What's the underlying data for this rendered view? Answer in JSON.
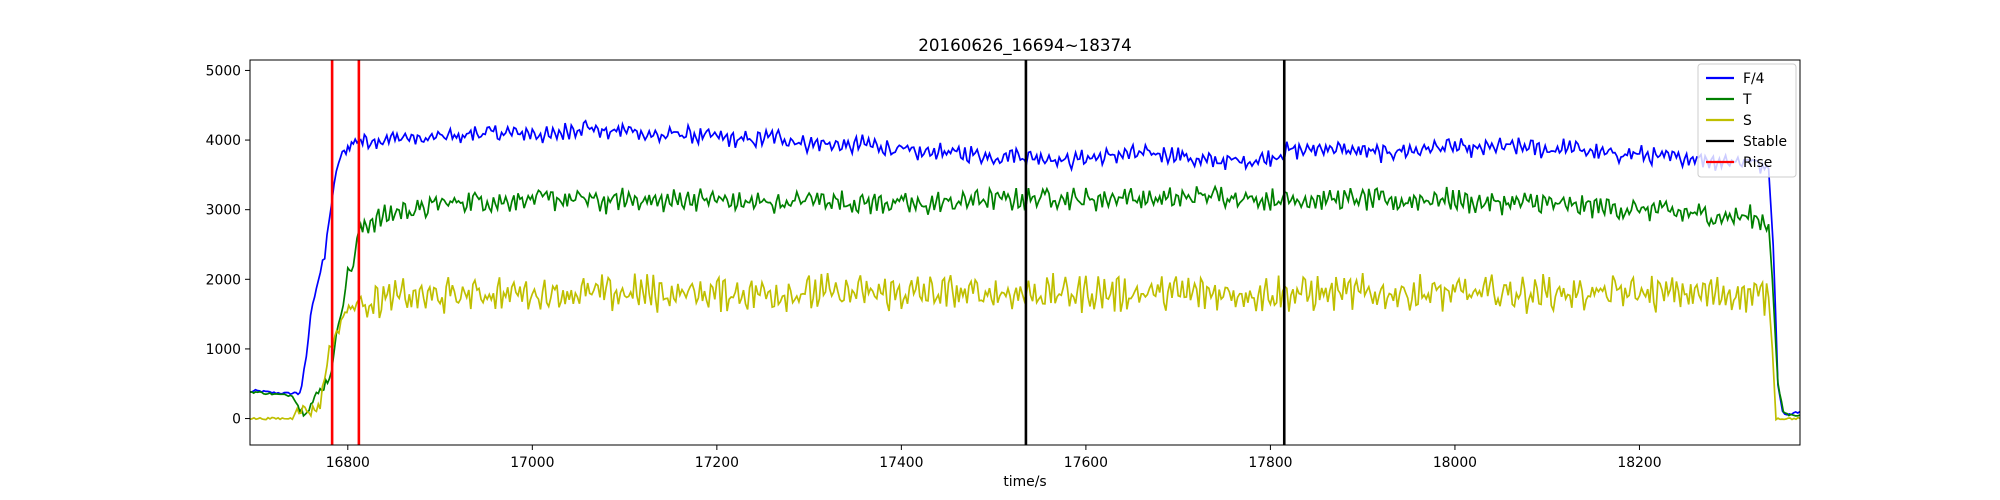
{
  "chart_data": {
    "type": "line",
    "title": "20160626_16694~18374",
    "xlabel": "time/s",
    "ylabel": "",
    "xlim": [
      16694,
      18374
    ],
    "ylim": [
      -380,
      5150
    ],
    "xticks": [
      16800,
      17000,
      17200,
      17400,
      17600,
      17800,
      18000,
      18200
    ],
    "yticks": [
      0,
      1000,
      2000,
      3000,
      4000,
      5000
    ],
    "grid": false,
    "legend_position": "top-right",
    "series": [
      {
        "name": "F/4",
        "color": "#0000ff",
        "points": [
          [
            16694,
            380
          ],
          [
            16700,
            400
          ],
          [
            16720,
            370
          ],
          [
            16740,
            360
          ],
          [
            16750,
            400
          ],
          [
            16755,
            900
          ],
          [
            16762,
            1700
          ],
          [
            16768,
            2000
          ],
          [
            16775,
            2300
          ],
          [
            16780,
            2900
          ],
          [
            16785,
            3300
          ],
          [
            16790,
            3700
          ],
          [
            16800,
            3900
          ],
          [
            16810,
            4000
          ],
          [
            16820,
            4000
          ],
          [
            16840,
            4000
          ],
          [
            16860,
            4050
          ],
          [
            16880,
            4000
          ],
          [
            16900,
            4050
          ],
          [
            16920,
            4050
          ],
          [
            16940,
            4100
          ],
          [
            16960,
            4100
          ],
          [
            16980,
            4100
          ],
          [
            17000,
            4100
          ],
          [
            17020,
            4050
          ],
          [
            17040,
            4150
          ],
          [
            17060,
            4200
          ],
          [
            17080,
            4100
          ],
          [
            17100,
            4150
          ],
          [
            17120,
            4100
          ],
          [
            17140,
            4050
          ],
          [
            17160,
            4100
          ],
          [
            17180,
            4050
          ],
          [
            17200,
            4050
          ],
          [
            17220,
            4000
          ],
          [
            17240,
            4000
          ],
          [
            17260,
            4050
          ],
          [
            17280,
            4000
          ],
          [
            17300,
            3950
          ],
          [
            17320,
            3950
          ],
          [
            17340,
            3900
          ],
          [
            17360,
            3950
          ],
          [
            17380,
            3900
          ],
          [
            17400,
            3850
          ],
          [
            17420,
            3800
          ],
          [
            17440,
            3850
          ],
          [
            17460,
            3800
          ],
          [
            17480,
            3800
          ],
          [
            17500,
            3750
          ],
          [
            17520,
            3800
          ],
          [
            17540,
            3750
          ],
          [
            17560,
            3750
          ],
          [
            17580,
            3700
          ],
          [
            17600,
            3750
          ],
          [
            17620,
            3750
          ],
          [
            17640,
            3800
          ],
          [
            17660,
            3800
          ],
          [
            17680,
            3800
          ],
          [
            17700,
            3800
          ],
          [
            17720,
            3700
          ],
          [
            17740,
            3700
          ],
          [
            17760,
            3700
          ],
          [
            17780,
            3700
          ],
          [
            17800,
            3750
          ],
          [
            17820,
            3850
          ],
          [
            17840,
            3850
          ],
          [
            17860,
            3900
          ],
          [
            17880,
            3850
          ],
          [
            17900,
            3850
          ],
          [
            17920,
            3800
          ],
          [
            17940,
            3850
          ],
          [
            17960,
            3850
          ],
          [
            17980,
            3900
          ],
          [
            18000,
            3900
          ],
          [
            18020,
            3850
          ],
          [
            18040,
            3900
          ],
          [
            18060,
            3900
          ],
          [
            18080,
            3900
          ],
          [
            18100,
            3850
          ],
          [
            18120,
            3900
          ],
          [
            18140,
            3850
          ],
          [
            18160,
            3800
          ],
          [
            18180,
            3800
          ],
          [
            18200,
            3800
          ],
          [
            18220,
            3750
          ],
          [
            18240,
            3750
          ],
          [
            18260,
            3750
          ],
          [
            18280,
            3700
          ],
          [
            18300,
            3700
          ],
          [
            18320,
            3700
          ],
          [
            18340,
            3600
          ],
          [
            18345,
            2500
          ],
          [
            18350,
            500
          ],
          [
            18355,
            100
          ],
          [
            18360,
            50
          ],
          [
            18374,
            100
          ]
        ]
      },
      {
        "name": "T",
        "color": "#008000",
        "points": [
          [
            16694,
            380
          ],
          [
            16700,
            380
          ],
          [
            16720,
            350
          ],
          [
            16740,
            330
          ],
          [
            16750,
            100
          ],
          [
            16760,
            200
          ],
          [
            16770,
            400
          ],
          [
            16780,
            600
          ],
          [
            16785,
            900
          ],
          [
            16790,
            1400
          ],
          [
            16795,
            1700
          ],
          [
            16800,
            2100
          ],
          [
            16806,
            2200
          ],
          [
            16812,
            2700
          ],
          [
            16820,
            2800
          ],
          [
            16840,
            2900
          ],
          [
            16860,
            3000
          ],
          [
            16880,
            3000
          ],
          [
            16900,
            3100
          ],
          [
            16920,
            3100
          ],
          [
            16940,
            3150
          ],
          [
            16960,
            3100
          ],
          [
            16980,
            3150
          ],
          [
            17000,
            3150
          ],
          [
            17020,
            3150
          ],
          [
            17040,
            3150
          ],
          [
            17060,
            3150
          ],
          [
            17080,
            3100
          ],
          [
            17100,
            3150
          ],
          [
            17120,
            3150
          ],
          [
            17140,
            3100
          ],
          [
            17160,
            3150
          ],
          [
            17180,
            3150
          ],
          [
            17200,
            3150
          ],
          [
            17220,
            3100
          ],
          [
            17240,
            3100
          ],
          [
            17260,
            3100
          ],
          [
            17280,
            3100
          ],
          [
            17300,
            3150
          ],
          [
            17320,
            3150
          ],
          [
            17340,
            3100
          ],
          [
            17360,
            3100
          ],
          [
            17380,
            3100
          ],
          [
            17400,
            3100
          ],
          [
            17420,
            3050
          ],
          [
            17440,
            3100
          ],
          [
            17460,
            3100
          ],
          [
            17480,
            3150
          ],
          [
            17500,
            3150
          ],
          [
            17520,
            3150
          ],
          [
            17540,
            3150
          ],
          [
            17560,
            3200
          ],
          [
            17580,
            3150
          ],
          [
            17600,
            3150
          ],
          [
            17620,
            3150
          ],
          [
            17640,
            3200
          ],
          [
            17660,
            3150
          ],
          [
            17680,
            3150
          ],
          [
            17700,
            3150
          ],
          [
            17720,
            3200
          ],
          [
            17740,
            3200
          ],
          [
            17760,
            3200
          ],
          [
            17780,
            3150
          ],
          [
            17800,
            3150
          ],
          [
            17820,
            3150
          ],
          [
            17840,
            3150
          ],
          [
            17860,
            3150
          ],
          [
            17880,
            3150
          ],
          [
            17900,
            3150
          ],
          [
            17920,
            3150
          ],
          [
            17940,
            3100
          ],
          [
            17960,
            3150
          ],
          [
            17980,
            3150
          ],
          [
            18000,
            3150
          ],
          [
            18020,
            3100
          ],
          [
            18040,
            3100
          ],
          [
            18060,
            3100
          ],
          [
            18080,
            3100
          ],
          [
            18100,
            3100
          ],
          [
            18120,
            3050
          ],
          [
            18140,
            3050
          ],
          [
            18160,
            3050
          ],
          [
            18180,
            3000
          ],
          [
            18200,
            3000
          ],
          [
            18220,
            3000
          ],
          [
            18240,
            2950
          ],
          [
            18260,
            2950
          ],
          [
            18280,
            2900
          ],
          [
            18300,
            2900
          ],
          [
            18320,
            2900
          ],
          [
            18340,
            2800
          ],
          [
            18344,
            2000
          ],
          [
            18350,
            500
          ],
          [
            18356,
            100
          ],
          [
            18362,
            50
          ],
          [
            18374,
            50
          ]
        ]
      },
      {
        "name": "S",
        "color": "#bfbf00",
        "points": [
          [
            16694,
            0
          ],
          [
            16720,
            0
          ],
          [
            16740,
            0
          ],
          [
            16745,
            150
          ],
          [
            16760,
            100
          ],
          [
            16770,
            200
          ],
          [
            16775,
            600
          ],
          [
            16780,
            1000
          ],
          [
            16788,
            1200
          ],
          [
            16795,
            1500
          ],
          [
            16805,
            1600
          ],
          [
            16812,
            1700
          ],
          [
            16830,
            1700
          ],
          [
            16860,
            1750
          ],
          [
            16900,
            1750
          ],
          [
            16940,
            1800
          ],
          [
            16980,
            1800
          ],
          [
            17020,
            1800
          ],
          [
            17060,
            1800
          ],
          [
            17100,
            1800
          ],
          [
            17140,
            1800
          ],
          [
            17180,
            1800
          ],
          [
            17220,
            1800
          ],
          [
            17260,
            1800
          ],
          [
            17300,
            1800
          ],
          [
            17340,
            1800
          ],
          [
            17380,
            1800
          ],
          [
            17420,
            1800
          ],
          [
            17460,
            1800
          ],
          [
            17500,
            1800
          ],
          [
            17540,
            1800
          ],
          [
            17580,
            1800
          ],
          [
            17620,
            1800
          ],
          [
            17660,
            1800
          ],
          [
            17700,
            1800
          ],
          [
            17740,
            1800
          ],
          [
            17780,
            1800
          ],
          [
            17820,
            1800
          ],
          [
            17860,
            1800
          ],
          [
            17900,
            1800
          ],
          [
            17940,
            1800
          ],
          [
            17980,
            1800
          ],
          [
            18020,
            1800
          ],
          [
            18060,
            1800
          ],
          [
            18100,
            1800
          ],
          [
            18140,
            1800
          ],
          [
            18180,
            1800
          ],
          [
            18220,
            1800
          ],
          [
            18260,
            1800
          ],
          [
            18300,
            1800
          ],
          [
            18340,
            1750
          ],
          [
            18344,
            1000
          ],
          [
            18348,
            0
          ],
          [
            18374,
            0
          ]
        ]
      }
    ],
    "vlines": [
      {
        "name": "Stable",
        "color": "#000000",
        "x": [
          17535,
          17815
        ]
      },
      {
        "name": "Rise",
        "color": "#ff0000",
        "x": [
          16783,
          16812
        ]
      }
    ],
    "legend": [
      {
        "label": "F/4",
        "color": "#0000ff"
      },
      {
        "label": "T",
        "color": "#008000"
      },
      {
        "label": "S",
        "color": "#bfbf00"
      },
      {
        "label": "Stable",
        "color": "#000000"
      },
      {
        "label": "Rise",
        "color": "#ff0000"
      }
    ]
  }
}
